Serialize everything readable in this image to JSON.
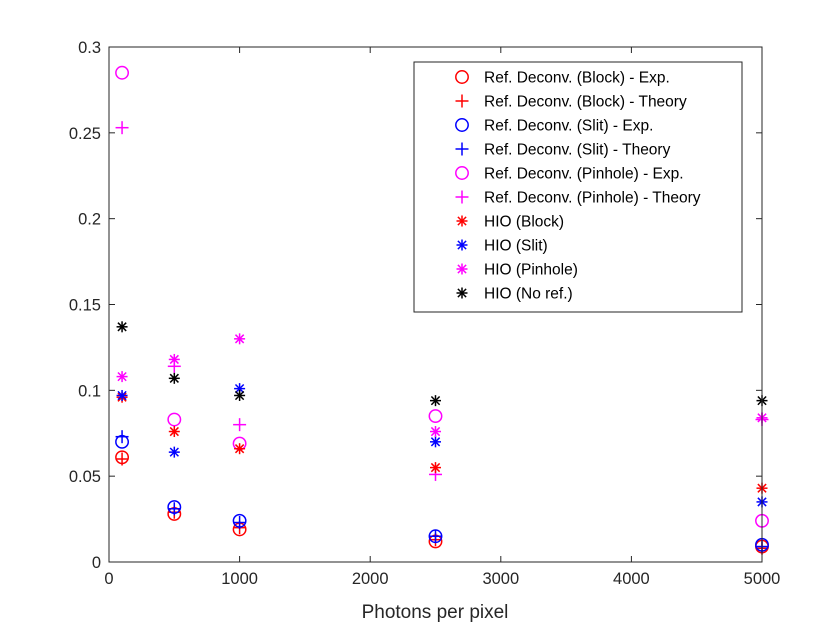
{
  "chart_data": {
    "type": "scatter",
    "title": "",
    "xlabel": "Photons per pixel",
    "ylabel": "",
    "xlim": [
      0,
      5000
    ],
    "ylim": [
      0,
      0.3
    ],
    "xticks": [
      0,
      1000,
      2000,
      3000,
      4000,
      5000
    ],
    "yticks": [
      0,
      0.05,
      0.1,
      0.15,
      0.2,
      0.25,
      0.3
    ],
    "xtick_labels": [
      "0",
      "1000",
      "2000",
      "3000",
      "4000",
      "5000"
    ],
    "ytick_labels": [
      "0",
      "0.05",
      "0.1",
      "0.15",
      "0.2",
      "0.25",
      "0.3"
    ],
    "grid": false,
    "legend_position": "top-right",
    "x": [
      100,
      500,
      1000,
      2500,
      5000
    ],
    "series": [
      {
        "name": "Ref. Deconv. (Block) - Exp.",
        "marker": "circle",
        "color": "#ff0000",
        "values": [
          0.061,
          0.028,
          0.019,
          0.012,
          0.009
        ]
      },
      {
        "name": "Ref. Deconv. (Block) - Theory",
        "marker": "plus",
        "color": "#ff0000",
        "values": [
          0.06,
          0.029,
          0.02,
          0.013,
          0.008
        ]
      },
      {
        "name": "Ref. Deconv. (Slit) - Exp.",
        "marker": "circle",
        "color": "#0000ff",
        "values": [
          0.07,
          0.032,
          0.024,
          0.015,
          0.01
        ]
      },
      {
        "name": "Ref. Deconv. (Slit) - Theory",
        "marker": "plus",
        "color": "#0000ff",
        "values": [
          0.073,
          0.031,
          0.023,
          0.015,
          0.009
        ]
      },
      {
        "name": "Ref. Deconv. (Pinhole) - Exp.",
        "marker": "circle",
        "color": "#ff00ff",
        "values": [
          0.285,
          0.083,
          0.069,
          0.085,
          0.024
        ]
      },
      {
        "name": "Ref. Deconv. (Pinhole) - Theory",
        "marker": "plus",
        "color": "#ff00ff",
        "values": [
          0.253,
          0.114,
          0.08,
          0.051,
          0.083
        ]
      },
      {
        "name": "HIO (Block)",
        "marker": "asterisk",
        "color": "#ff0000",
        "values": [
          0.096,
          0.076,
          0.066,
          0.055,
          0.043
        ]
      },
      {
        "name": "HIO (Slit)",
        "marker": "asterisk",
        "color": "#0000ff",
        "values": [
          0.097,
          0.064,
          0.101,
          0.07,
          0.035
        ]
      },
      {
        "name": "HIO (Pinhole)",
        "marker": "asterisk",
        "color": "#ff00ff",
        "values": [
          0.108,
          0.118,
          0.13,
          0.076,
          0.084
        ]
      },
      {
        "name": "HIO (No ref.)",
        "marker": "asterisk",
        "color": "#000000",
        "values": [
          0.137,
          0.107,
          0.097,
          0.094,
          0.094
        ]
      }
    ]
  }
}
